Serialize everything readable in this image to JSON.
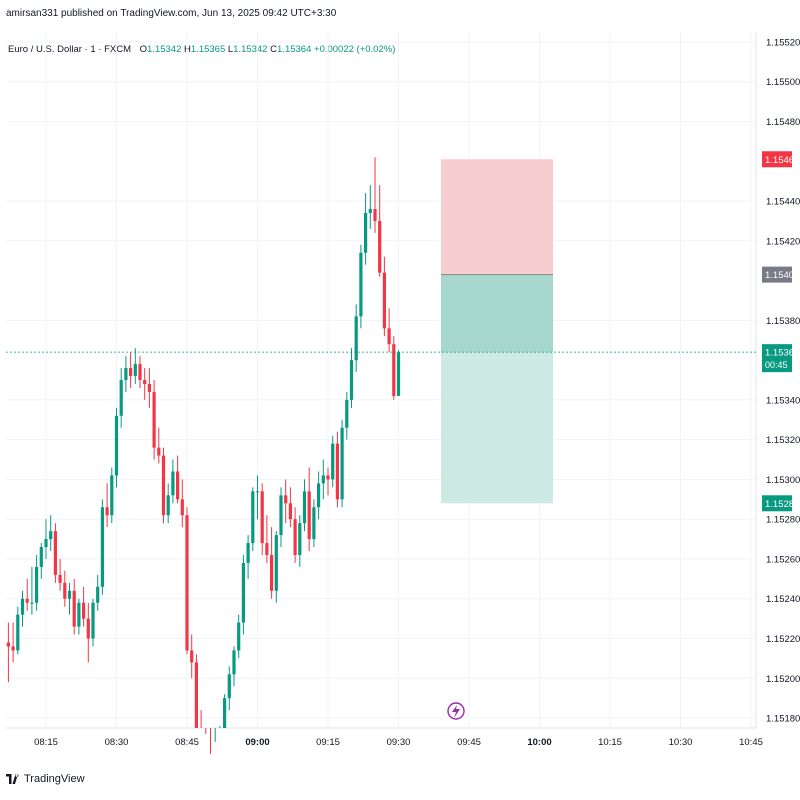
{
  "header": {
    "published_text": "amirsan331 published on TradingView.com, Jun 13, 2025 09:42 UTC+3:30"
  },
  "legend": {
    "symbol": "Euro / U.S. Dollar · 1 · FXCM",
    "open_label": "O",
    "open_value": "1.15342",
    "high_label": "H",
    "high_value": "1.15365",
    "low_label": "L",
    "low_value": "1.15342",
    "close_label": "C",
    "close_value": "1.15364",
    "change": "+0.00022 (+0.02%)"
  },
  "footer": {
    "brand": "TradingView"
  },
  "colors": {
    "up": "#089981",
    "down": "#f23645",
    "grid": "#f0f3fa",
    "stop_zone": "#f8cdd0",
    "target_zone": "#cde9e4",
    "target_zone_active": "#a7d8cd",
    "flash_icon": "#9c27b0"
  },
  "chart_data": {
    "type": "candlestick",
    "symbol": "EURUSD",
    "timeframe": "1",
    "y_ticks": [
      "1.15520",
      "1.15500",
      "1.15480",
      "1.15440",
      "1.15420",
      "1.15380",
      "1.15340",
      "1.15320",
      "1.15300",
      "1.15280",
      "1.15260",
      "1.15240",
      "1.15220",
      "1.15200",
      "1.15180"
    ],
    "x_ticks": [
      "08:15",
      "08:30",
      "08:45",
      "09:00",
      "09:15",
      "09:30",
      "09:45",
      "10:00",
      "10:15",
      "10:30",
      "10:45"
    ],
    "ylim": [
      1.15175,
      1.15525
    ],
    "candles": [
      {
        "o": 1.15218,
        "h": 1.15228,
        "l": 1.15198,
        "c": 1.15216
      },
      {
        "o": 1.15216,
        "h": 1.15228,
        "l": 1.15208,
        "c": 1.15214
      },
      {
        "o": 1.15214,
        "h": 1.15236,
        "l": 1.15212,
        "c": 1.15232
      },
      {
        "o": 1.15232,
        "h": 1.15244,
        "l": 1.15226,
        "c": 1.1524
      },
      {
        "o": 1.1524,
        "h": 1.1525,
        "l": 1.15234,
        "c": 1.15238
      },
      {
        "o": 1.15238,
        "h": 1.15256,
        "l": 1.15232,
        "c": 1.15238
      },
      {
        "o": 1.15238,
        "h": 1.15262,
        "l": 1.15234,
        "c": 1.15256
      },
      {
        "o": 1.15256,
        "h": 1.15268,
        "l": 1.1525,
        "c": 1.15266
      },
      {
        "o": 1.15266,
        "h": 1.1528,
        "l": 1.1526,
        "c": 1.1527
      },
      {
        "o": 1.1527,
        "h": 1.15282,
        "l": 1.15264,
        "c": 1.15274
      },
      {
        "o": 1.15274,
        "h": 1.15278,
        "l": 1.15248,
        "c": 1.15252
      },
      {
        "o": 1.15252,
        "h": 1.1526,
        "l": 1.15244,
        "c": 1.15248
      },
      {
        "o": 1.15248,
        "h": 1.15254,
        "l": 1.15236,
        "c": 1.1524
      },
      {
        "o": 1.1524,
        "h": 1.15248,
        "l": 1.15232,
        "c": 1.15244
      },
      {
        "o": 1.15244,
        "h": 1.1525,
        "l": 1.15222,
        "c": 1.15226
      },
      {
        "o": 1.15226,
        "h": 1.1524,
        "l": 1.15222,
        "c": 1.15238
      },
      {
        "o": 1.15238,
        "h": 1.15246,
        "l": 1.15226,
        "c": 1.1523
      },
      {
        "o": 1.1523,
        "h": 1.15238,
        "l": 1.15208,
        "c": 1.1522
      },
      {
        "o": 1.1522,
        "h": 1.1524,
        "l": 1.15216,
        "c": 1.15238
      },
      {
        "o": 1.15238,
        "h": 1.15252,
        "l": 1.15234,
        "c": 1.15246
      },
      {
        "o": 1.15246,
        "h": 1.1529,
        "l": 1.15242,
        "c": 1.15286
      },
      {
        "o": 1.15286,
        "h": 1.15298,
        "l": 1.15276,
        "c": 1.15282
      },
      {
        "o": 1.15282,
        "h": 1.15306,
        "l": 1.15278,
        "c": 1.15302
      },
      {
        "o": 1.15302,
        "h": 1.15336,
        "l": 1.15296,
        "c": 1.15332
      },
      {
        "o": 1.15332,
        "h": 1.15356,
        "l": 1.15326,
        "c": 1.1535
      },
      {
        "o": 1.1535,
        "h": 1.15362,
        "l": 1.15344,
        "c": 1.15356
      },
      {
        "o": 1.15356,
        "h": 1.15364,
        "l": 1.15346,
        "c": 1.15352
      },
      {
        "o": 1.15352,
        "h": 1.15366,
        "l": 1.15348,
        "c": 1.15358
      },
      {
        "o": 1.15358,
        "h": 1.15362,
        "l": 1.15346,
        "c": 1.1535
      },
      {
        "o": 1.1535,
        "h": 1.15356,
        "l": 1.1534,
        "c": 1.15348
      },
      {
        "o": 1.15348,
        "h": 1.15356,
        "l": 1.15336,
        "c": 1.15344
      },
      {
        "o": 1.15344,
        "h": 1.1535,
        "l": 1.1531,
        "c": 1.15316
      },
      {
        "o": 1.15316,
        "h": 1.15326,
        "l": 1.15308,
        "c": 1.15312
      },
      {
        "o": 1.15312,
        "h": 1.15316,
        "l": 1.15278,
        "c": 1.15282
      },
      {
        "o": 1.15282,
        "h": 1.15298,
        "l": 1.15278,
        "c": 1.15292
      },
      {
        "o": 1.15292,
        "h": 1.1531,
        "l": 1.15288,
        "c": 1.15304
      },
      {
        "o": 1.15304,
        "h": 1.15312,
        "l": 1.15288,
        "c": 1.1529
      },
      {
        "o": 1.1529,
        "h": 1.153,
        "l": 1.15276,
        "c": 1.15282
      },
      {
        "o": 1.15282,
        "h": 1.15286,
        "l": 1.15212,
        "c": 1.15214
      },
      {
        "o": 1.15214,
        "h": 1.15222,
        "l": 1.152,
        "c": 1.15208
      },
      {
        "o": 1.15208,
        "h": 1.15212,
        "l": 1.1517,
        "c": 1.15174
      },
      {
        "o": 1.15174,
        "h": 1.15184,
        "l": 1.1516,
        "c": 1.15166
      },
      {
        "o": 1.15166,
        "h": 1.15172,
        "l": 1.1515,
        "c": 1.15156
      },
      {
        "o": 1.15156,
        "h": 1.15162,
        "l": 1.1514,
        "c": 1.15152
      },
      {
        "o": 1.15152,
        "h": 1.15168,
        "l": 1.15148,
        "c": 1.1516
      },
      {
        "o": 1.1516,
        "h": 1.15176,
        "l": 1.15154,
        "c": 1.15172
      },
      {
        "o": 1.15172,
        "h": 1.15192,
        "l": 1.15168,
        "c": 1.1519
      },
      {
        "o": 1.1519,
        "h": 1.15206,
        "l": 1.15184,
        "c": 1.15202
      },
      {
        "o": 1.15202,
        "h": 1.15216,
        "l": 1.15196,
        "c": 1.15214
      },
      {
        "o": 1.15214,
        "h": 1.15232,
        "l": 1.1521,
        "c": 1.15228
      },
      {
        "o": 1.15228,
        "h": 1.15262,
        "l": 1.15222,
        "c": 1.15258
      },
      {
        "o": 1.15258,
        "h": 1.15272,
        "l": 1.1525,
        "c": 1.15268
      },
      {
        "o": 1.15268,
        "h": 1.15296,
        "l": 1.15264,
        "c": 1.15294
      },
      {
        "o": 1.15294,
        "h": 1.15302,
        "l": 1.1528,
        "c": 1.15294
      },
      {
        "o": 1.15294,
        "h": 1.15298,
        "l": 1.15262,
        "c": 1.15268
      },
      {
        "o": 1.15268,
        "h": 1.15282,
        "l": 1.15258,
        "c": 1.15262
      },
      {
        "o": 1.15262,
        "h": 1.15276,
        "l": 1.1524,
        "c": 1.15244
      },
      {
        "o": 1.15244,
        "h": 1.15274,
        "l": 1.15238,
        "c": 1.15272
      },
      {
        "o": 1.15272,
        "h": 1.15296,
        "l": 1.15266,
        "c": 1.15292
      },
      {
        "o": 1.15292,
        "h": 1.153,
        "l": 1.15278,
        "c": 1.15288
      },
      {
        "o": 1.15288,
        "h": 1.15296,
        "l": 1.15276,
        "c": 1.1528
      },
      {
        "o": 1.1528,
        "h": 1.15286,
        "l": 1.15258,
        "c": 1.15262
      },
      {
        "o": 1.15262,
        "h": 1.15282,
        "l": 1.15256,
        "c": 1.15278
      },
      {
        "o": 1.15278,
        "h": 1.153,
        "l": 1.15274,
        "c": 1.15294
      },
      {
        "o": 1.15294,
        "h": 1.15306,
        "l": 1.15264,
        "c": 1.1527
      },
      {
        "o": 1.1527,
        "h": 1.1529,
        "l": 1.15266,
        "c": 1.15286
      },
      {
        "o": 1.15286,
        "h": 1.15304,
        "l": 1.1528,
        "c": 1.15298
      },
      {
        "o": 1.15298,
        "h": 1.1531,
        "l": 1.1529,
        "c": 1.15302
      },
      {
        "o": 1.15302,
        "h": 1.15306,
        "l": 1.15292,
        "c": 1.153
      },
      {
        "o": 1.153,
        "h": 1.15322,
        "l": 1.15296,
        "c": 1.15318
      },
      {
        "o": 1.15318,
        "h": 1.15324,
        "l": 1.15286,
        "c": 1.1529
      },
      {
        "o": 1.1529,
        "h": 1.1533,
        "l": 1.15286,
        "c": 1.15326
      },
      {
        "o": 1.15326,
        "h": 1.15344,
        "l": 1.1532,
        "c": 1.1534
      },
      {
        "o": 1.1534,
        "h": 1.15366,
        "l": 1.15336,
        "c": 1.1536
      },
      {
        "o": 1.1536,
        "h": 1.15388,
        "l": 1.15354,
        "c": 1.15382
      },
      {
        "o": 1.15382,
        "h": 1.15418,
        "l": 1.15376,
        "c": 1.15414
      },
      {
        "o": 1.15414,
        "h": 1.15444,
        "l": 1.15408,
        "c": 1.15434
      },
      {
        "o": 1.15434,
        "h": 1.15448,
        "l": 1.15426,
        "c": 1.15436
      },
      {
        "o": 1.15436,
        "h": 1.15462,
        "l": 1.15424,
        "c": 1.1543
      },
      {
        "o": 1.1543,
        "h": 1.15448,
        "l": 1.15402,
        "c": 1.15404
      },
      {
        "o": 1.15404,
        "h": 1.15412,
        "l": 1.15372,
        "c": 1.15376
      },
      {
        "o": 1.15376,
        "h": 1.15386,
        "l": 1.15364,
        "c": 1.15368
      },
      {
        "o": 1.15368,
        "h": 1.15372,
        "l": 1.1534,
        "c": 1.15342
      },
      {
        "o": 1.15342,
        "h": 1.15365,
        "l": 1.15342,
        "c": 1.15364
      }
    ],
    "current_price": "1.15364",
    "countdown": "00:45",
    "position": {
      "type": "short",
      "stop": "1.15461",
      "entry": "1.15403",
      "target": "1.15288"
    },
    "grid": true
  }
}
